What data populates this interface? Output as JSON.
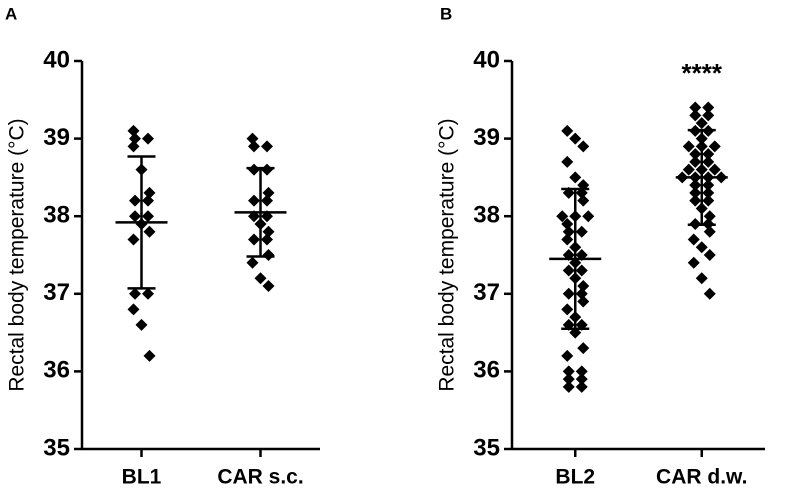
{
  "chart_data": [
    {
      "type": "scatter",
      "panel": "A",
      "y_label": "Rectal body temperature (°C)",
      "color": "#000000",
      "ylim": [
        35,
        40
      ],
      "yticks": [
        35,
        36,
        37,
        38,
        39,
        40
      ],
      "groups": [
        {
          "name": "BL1",
          "mean": 37.92,
          "sd": 0.85,
          "values": [
            39.1,
            39.0,
            39.0,
            38.9,
            38.6,
            38.3,
            38.2,
            38.2,
            38.0,
            38.0,
            37.9,
            37.8,
            37.7,
            37.0,
            37.0,
            36.8,
            36.6,
            36.2
          ]
        },
        {
          "name": "CAR s.c.",
          "mean": 38.05,
          "sd": 0.57,
          "values": [
            39.0,
            38.9,
            38.9,
            38.6,
            38.6,
            38.3,
            38.2,
            38.2,
            38.0,
            38.0,
            37.9,
            37.8,
            37.7,
            37.7,
            37.5,
            37.4,
            37.2,
            37.1
          ]
        }
      ]
    },
    {
      "type": "scatter",
      "panel": "B",
      "y_label": "Rectal body temperature (°C)",
      "color": "#000000",
      "ylim": [
        35,
        40
      ],
      "yticks": [
        35,
        36,
        37,
        38,
        39,
        40
      ],
      "groups": [
        {
          "name": "BL2",
          "mean": 37.45,
          "sd": 0.9,
          "values": [
            39.1,
            39.0,
            38.9,
            38.7,
            38.5,
            38.4,
            38.3,
            38.3,
            38.2,
            38.0,
            38.0,
            38.0,
            37.9,
            37.8,
            37.8,
            37.7,
            37.6,
            37.5,
            37.5,
            37.4,
            37.3,
            37.3,
            37.2,
            37.1,
            37.0,
            37.0,
            36.9,
            36.8,
            36.7,
            36.6,
            36.6,
            36.5,
            36.3,
            36.2,
            36.0,
            36.0,
            35.9,
            35.9,
            35.8,
            35.8
          ]
        },
        {
          "name": "CAR d.w.",
          "mean": 38.5,
          "sd": 0.61,
          "annotation": "****",
          "values": [
            39.4,
            39.4,
            39.3,
            39.3,
            39.2,
            39.1,
            39.1,
            39.0,
            38.9,
            38.9,
            38.9,
            38.8,
            38.8,
            38.7,
            38.7,
            38.6,
            38.6,
            38.6,
            38.5,
            38.5,
            38.5,
            38.5,
            38.4,
            38.4,
            38.3,
            38.3,
            38.2,
            38.2,
            38.1,
            38.0,
            37.9,
            37.9,
            37.8,
            37.7,
            37.6,
            37.5,
            37.4,
            37.2,
            37.0
          ]
        }
      ]
    }
  ]
}
